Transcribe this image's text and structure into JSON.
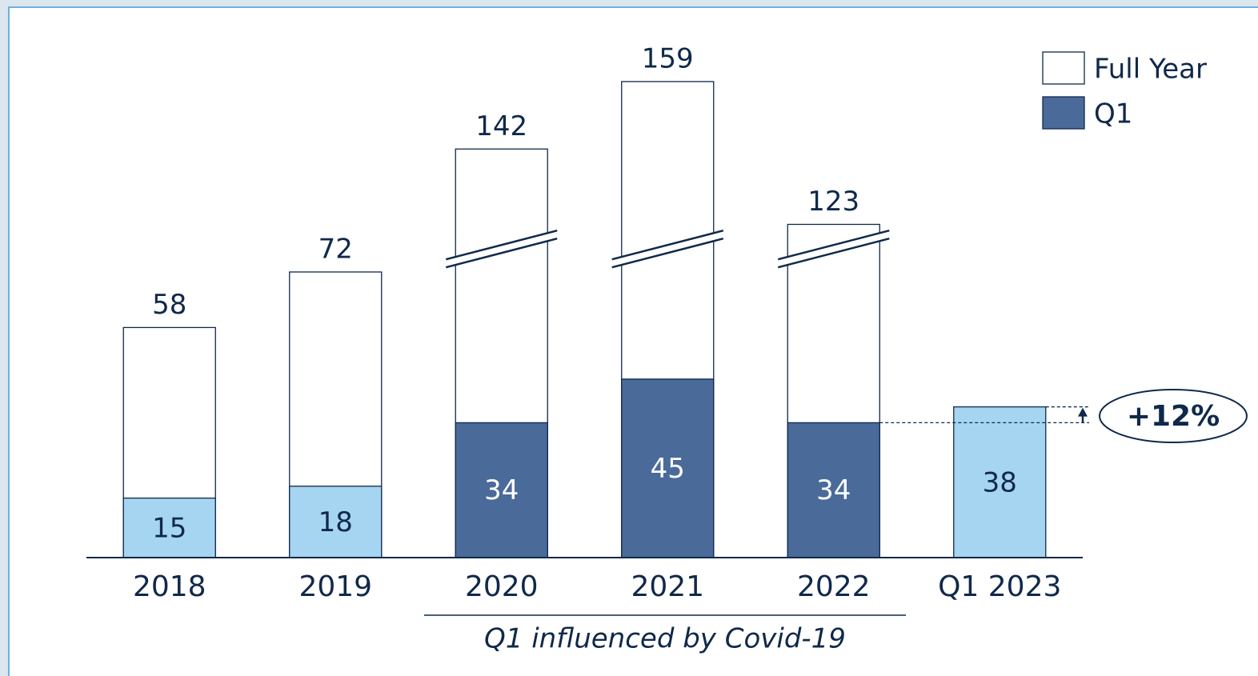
{
  "chart_data": {
    "type": "bar",
    "categories": [
      "2018",
      "2019",
      "2020",
      "2021",
      "2022",
      "Q1 2023"
    ],
    "series": [
      {
        "name": "Full Year",
        "color": "#ffffff",
        "values": [
          58,
          72,
          142,
          159,
          123,
          null
        ]
      },
      {
        "name": "Q1",
        "color": "#4a6a9a",
        "colors": [
          "#a6d5f2",
          "#a6d5f2",
          "#4a6a9a",
          "#4a6a9a",
          "#4a6a9a",
          "#a6d5f2"
        ],
        "values": [
          15,
          18,
          34,
          45,
          34,
          38
        ]
      }
    ],
    "ylim": [
      0,
      160
    ],
    "axis_break": [
      78,
      117
    ],
    "legend": "upper right",
    "annotations": [
      "+12%",
      "Q1 influenced by Covid-19"
    ]
  }
}
